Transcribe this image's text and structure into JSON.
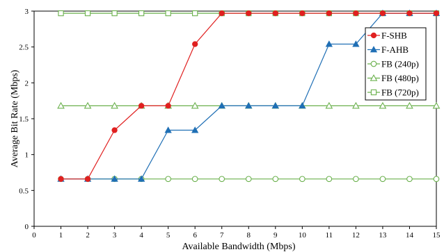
{
  "chart_data": {
    "type": "line",
    "xlabel": "Available Bandwidth (Mbps)",
    "ylabel": "Average Bit Rate (Mbps)",
    "xlim": [
      0,
      15
    ],
    "ylim": [
      0,
      3
    ],
    "x_ticks": [
      "0",
      "1",
      "2",
      "3",
      "4",
      "5",
      "6",
      "7",
      "8",
      "9",
      "10",
      "11",
      "12",
      "13",
      "14",
      "15"
    ],
    "y_ticks": [
      "0",
      "0.5",
      "1",
      "1.5",
      "2",
      "2.5",
      "3"
    ],
    "grid": false,
    "legend_position": "top-right",
    "x": [
      1,
      2,
      3,
      4,
      5,
      6,
      7,
      8,
      9,
      10,
      11,
      12,
      13,
      14,
      15
    ],
    "series": [
      {
        "name": "F-SHB",
        "color": "#e02020",
        "marker": "circle-filled",
        "values": [
          0.66,
          0.66,
          1.34,
          1.68,
          1.68,
          2.54,
          2.97,
          2.97,
          2.97,
          2.97,
          2.97,
          2.97,
          2.97,
          2.97,
          2.97
        ]
      },
      {
        "name": "F-AHB",
        "color": "#1f6fb5",
        "marker": "triangle-filled",
        "values": [
          0.66,
          0.66,
          0.66,
          0.66,
          1.34,
          1.34,
          1.68,
          1.68,
          1.68,
          1.68,
          2.54,
          2.54,
          2.97,
          2.97,
          2.97
        ]
      },
      {
        "name": "FB (240p)",
        "color": "#6ab04c",
        "marker": "circle-open",
        "values": [
          0.66,
          0.66,
          0.66,
          0.66,
          0.66,
          0.66,
          0.66,
          0.66,
          0.66,
          0.66,
          0.66,
          0.66,
          0.66,
          0.66,
          0.66
        ]
      },
      {
        "name": "FB (480p)",
        "color": "#6ab04c",
        "marker": "triangle-open",
        "values": [
          1.68,
          1.68,
          1.68,
          1.68,
          1.68,
          1.68,
          1.68,
          1.68,
          1.68,
          1.68,
          1.68,
          1.68,
          1.68,
          1.68,
          1.68
        ]
      },
      {
        "name": "FB (720p)",
        "color": "#6ab04c",
        "marker": "square-open",
        "values": [
          2.97,
          2.97,
          2.97,
          2.97,
          2.97,
          2.97,
          2.97,
          2.97,
          2.97,
          2.97,
          2.97,
          2.97,
          2.97,
          2.97,
          2.97
        ]
      }
    ]
  }
}
